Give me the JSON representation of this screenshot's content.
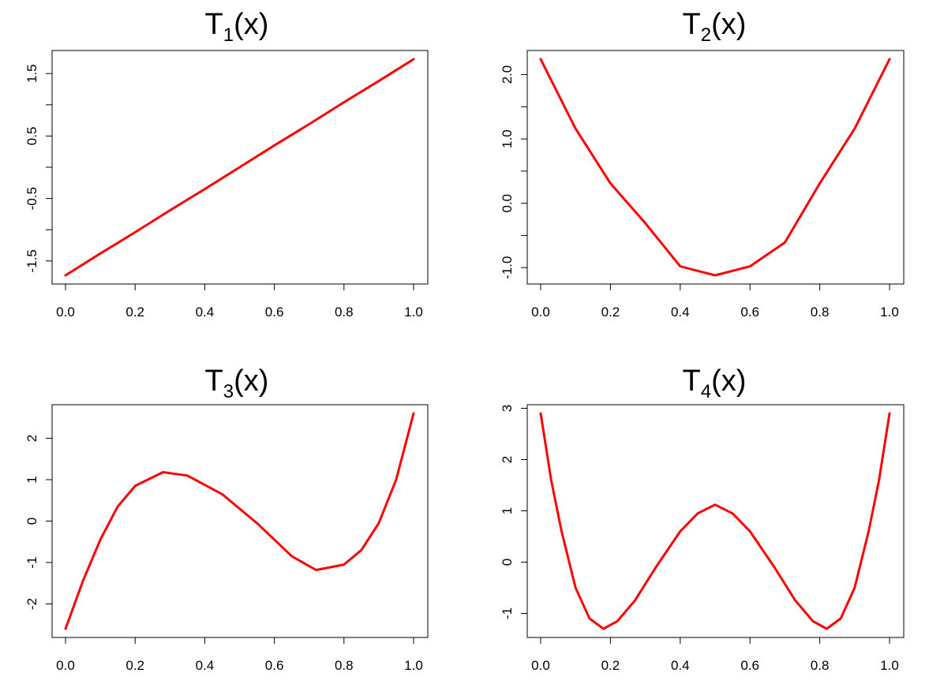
{
  "chart_data": [
    {
      "type": "line",
      "title": "T",
      "title_subscript": "1",
      "title_suffix": "(x)",
      "xlabel": "",
      "ylabel": "",
      "xlim": [
        0,
        1
      ],
      "ylim": [
        -1.73,
        1.73
      ],
      "x_ticks": [
        "0.0",
        "0.2",
        "0.4",
        "0.6",
        "0.8",
        "1.0"
      ],
      "y_ticks": [
        {
          "value": 1.5,
          "label": "1.5"
        },
        {
          "value": 1.0,
          "label": ""
        },
        {
          "value": 0.5,
          "label": "0.5"
        },
        {
          "value": 0.0,
          "label": ""
        },
        {
          "value": -0.5,
          "label": "-0.5"
        },
        {
          "value": -1.0,
          "label": ""
        },
        {
          "value": -1.5,
          "label": "-1.5"
        }
      ],
      "series": [
        {
          "color": "#ff0000",
          "x": [
            0.0,
            0.1,
            0.2,
            0.3,
            0.4,
            0.5,
            0.6,
            0.7,
            0.8,
            0.9,
            1.0
          ],
          "y": [
            -1.73,
            -1.38,
            -1.04,
            -0.69,
            -0.35,
            0.0,
            0.35,
            0.69,
            1.04,
            1.38,
            1.73
          ]
        }
      ]
    },
    {
      "type": "line",
      "title": "T",
      "title_subscript": "2",
      "title_suffix": "(x)",
      "xlabel": "",
      "ylabel": "",
      "xlim": [
        0,
        1
      ],
      "ylim": [
        -1.12,
        2.24
      ],
      "x_ticks": [
        "0.0",
        "0.2",
        "0.4",
        "0.6",
        "0.8",
        "1.0"
      ],
      "y_ticks": [
        {
          "value": 2.0,
          "label": "2.0"
        },
        {
          "value": 1.5,
          "label": ""
        },
        {
          "value": 1.0,
          "label": "1.0"
        },
        {
          "value": 0.5,
          "label": ""
        },
        {
          "value": 0.0,
          "label": "0.0"
        },
        {
          "value": -0.5,
          "label": ""
        },
        {
          "value": -1.0,
          "label": "-1.0"
        }
      ],
      "series": [
        {
          "color": "#ff0000",
          "x": [
            0.0,
            0.1,
            0.2,
            0.3,
            0.4,
            0.5,
            0.6,
            0.7,
            0.8,
            0.9,
            1.0
          ],
          "y": [
            2.24,
            1.16,
            0.31,
            -0.31,
            -0.98,
            -1.12,
            -0.98,
            -0.61,
            0.31,
            1.16,
            2.24
          ]
        }
      ]
    },
    {
      "type": "line",
      "title": "T",
      "title_subscript": "3",
      "title_suffix": "(x)",
      "xlabel": "",
      "ylabel": "",
      "xlim": [
        0,
        1
      ],
      "ylim": [
        -2.6,
        2.6
      ],
      "x_ticks": [
        "0.0",
        "0.2",
        "0.4",
        "0.6",
        "0.8",
        "1.0"
      ],
      "y_ticks": [
        {
          "value": 2,
          "label": "2"
        },
        {
          "value": 1,
          "label": "1"
        },
        {
          "value": 0,
          "label": "0"
        },
        {
          "value": -1,
          "label": "-1"
        },
        {
          "value": -2,
          "label": "-2"
        }
      ],
      "series": [
        {
          "color": "#ff0000",
          "x": [
            0.0,
            0.05,
            0.1,
            0.15,
            0.2,
            0.28,
            0.35,
            0.45,
            0.55,
            0.65,
            0.72,
            0.8,
            0.85,
            0.9,
            0.95,
            1.0
          ],
          "y": [
            -2.6,
            -1.45,
            -0.45,
            0.35,
            0.85,
            1.18,
            1.1,
            0.65,
            -0.05,
            -0.85,
            -1.18,
            -1.05,
            -0.7,
            -0.05,
            1.0,
            2.6
          ]
        }
      ]
    },
    {
      "type": "line",
      "title": "T",
      "title_subscript": "4",
      "title_suffix": "(x)",
      "xlabel": "",
      "ylabel": "",
      "xlim": [
        0,
        1
      ],
      "ylim": [
        -1.3,
        2.9
      ],
      "x_ticks": [
        "0.0",
        "0.2",
        "0.4",
        "0.6",
        "0.8",
        "1.0"
      ],
      "y_ticks": [
        {
          "value": 3,
          "label": "3"
        },
        {
          "value": 2,
          "label": "2"
        },
        {
          "value": 1,
          "label": "1"
        },
        {
          "value": 0,
          "label": "0"
        },
        {
          "value": -1,
          "label": "-1"
        }
      ],
      "series": [
        {
          "color": "#ff0000",
          "x": [
            0.0,
            0.03,
            0.06,
            0.1,
            0.14,
            0.18,
            0.22,
            0.27,
            0.33,
            0.4,
            0.45,
            0.5,
            0.55,
            0.6,
            0.67,
            0.73,
            0.78,
            0.82,
            0.86,
            0.9,
            0.94,
            0.97,
            1.0
          ],
          "y": [
            2.9,
            1.6,
            0.6,
            -0.5,
            -1.1,
            -1.3,
            -1.15,
            -0.75,
            -0.1,
            0.6,
            0.95,
            1.12,
            0.95,
            0.6,
            -0.1,
            -0.75,
            -1.15,
            -1.3,
            -1.1,
            -0.5,
            0.6,
            1.6,
            2.9
          ]
        }
      ]
    }
  ]
}
